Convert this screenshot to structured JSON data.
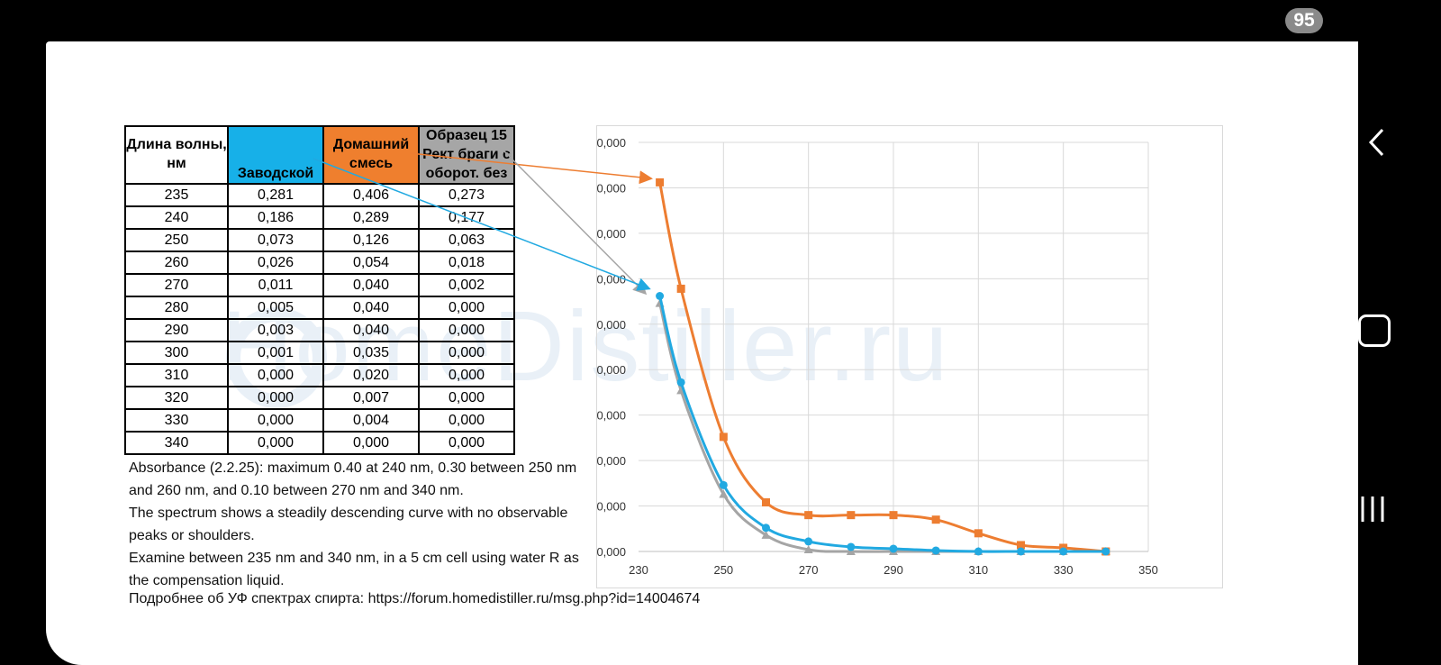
{
  "status": {
    "badge": "95"
  },
  "watermark": "HomeDistiller.ru",
  "table": {
    "headers": [
      "Длина волны, нм",
      "Заводской",
      "Домашний смесь",
      "Образец 15 Рект браги с оборот. без"
    ],
    "rows": [
      [
        "235",
        "0,281",
        "0,406",
        "0,273"
      ],
      [
        "240",
        "0,186",
        "0,289",
        "0,177"
      ],
      [
        "250",
        "0,073",
        "0,126",
        "0,063"
      ],
      [
        "260",
        "0,026",
        "0,054",
        "0,018"
      ],
      [
        "270",
        "0,011",
        "0,040",
        "0,002"
      ],
      [
        "280",
        "0,005",
        "0,040",
        "0,000"
      ],
      [
        "290",
        "0,003",
        "0,040",
        "0,000"
      ],
      [
        "300",
        "0,001",
        "0,035",
        "0,000"
      ],
      [
        "310",
        "0,000",
        "0,020",
        "0,000"
      ],
      [
        "320",
        "0,000",
        "0,007",
        "0,000"
      ],
      [
        "330",
        "0,000",
        "0,004",
        "0,000"
      ],
      [
        "340",
        "0,000",
        "0,000",
        "0,000"
      ]
    ]
  },
  "notes": [
    "Absorbance (2.2.25): maximum 0.40 at 240 nm, 0.30 between 250 nm and 260 nm, and 0.10 between 270 nm and 340 nm.",
    "The spectrum shows a steadily descending curve with no observable peaks or shoulders.",
    "Examine between 235 nm and 340 nm, in a 5 cm cell using water R as the compensation liquid."
  ],
  "link_line": "Подробнее об УФ спектрах спирта: https://forum.homedistiller.ru/msg.php?id=14004674",
  "chart_data": {
    "type": "line",
    "x": [
      235,
      240,
      250,
      260,
      270,
      280,
      290,
      300,
      310,
      320,
      330,
      340
    ],
    "series": [
      {
        "name": "Заводской",
        "color": "#21a9e1",
        "marker": "circle",
        "values": [
          0.281,
          0.186,
          0.073,
          0.026,
          0.011,
          0.005,
          0.003,
          0.001,
          0.0,
          0.0,
          0.0,
          0.0
        ]
      },
      {
        "name": "Домашний смесь",
        "color": "#ed7d31",
        "marker": "square",
        "values": [
          0.406,
          0.289,
          0.126,
          0.054,
          0.04,
          0.04,
          0.04,
          0.035,
          0.02,
          0.007,
          0.004,
          0.0
        ]
      },
      {
        "name": "Образец 15 Рект браги с оборот. без",
        "color": "#a5a5a5",
        "marker": "triangle",
        "values": [
          0.273,
          0.177,
          0.063,
          0.018,
          0.002,
          0.0,
          0.0,
          0.0,
          0.0,
          0.0,
          0.0,
          0.0
        ]
      }
    ],
    "xlim": [
      230,
      350
    ],
    "ylim": [
      0,
      0.45
    ],
    "x_ticks": [
      "230",
      "250",
      "270",
      "290",
      "310",
      "330",
      "350"
    ],
    "y_ticks": [
      "0,000",
      "0,000",
      "0,000",
      "0,000",
      "0,000",
      "0,000",
      "0,000",
      "0,000",
      "0,000",
      "0,000"
    ],
    "grid": true,
    "legend": "none",
    "title": "",
    "xlabel": "",
    "ylabel": ""
  }
}
